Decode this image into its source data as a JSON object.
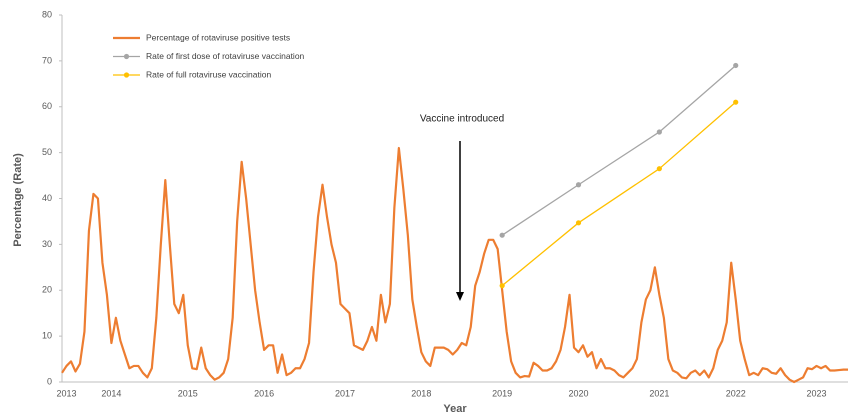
{
  "chart_data": {
    "type": "line",
    "x_label": "Year",
    "y_label": "Percentage (Rate)",
    "annotation": "Vaccine introduced",
    "categories": [
      null,
      "2013",
      null,
      null,
      null,
      null,
      null,
      null,
      null,
      null,
      null,
      "2014",
      null,
      null,
      null,
      null,
      null,
      null,
      null,
      null,
      null,
      null,
      null,
      null,
      null,
      null,
      null,
      null,
      "2015",
      null,
      null,
      null,
      null,
      null,
      null,
      null,
      null,
      null,
      null,
      null,
      null,
      null,
      null,
      null,
      null,
      "2016",
      null,
      null,
      null,
      null,
      null,
      null,
      null,
      null,
      null,
      null,
      null,
      null,
      null,
      null,
      null,
      null,
      null,
      "2017",
      null,
      null,
      null,
      null,
      null,
      null,
      null,
      null,
      null,
      null,
      null,
      null,
      null,
      null,
      null,
      null,
      "2018",
      null,
      null,
      null,
      null,
      null,
      null,
      null,
      null,
      null,
      null,
      null,
      null,
      null,
      null,
      null,
      null,
      null,
      "2019",
      null,
      null,
      null,
      null,
      null,
      null,
      null,
      null,
      null,
      null,
      null,
      null,
      null,
      null,
      null,
      null,
      "2020",
      null,
      null,
      null,
      null,
      null,
      null,
      null,
      null,
      null,
      null,
      null,
      null,
      null,
      null,
      null,
      null,
      null,
      "2021",
      null,
      null,
      null,
      null,
      null,
      null,
      null,
      null,
      null,
      null,
      null,
      null,
      null,
      null,
      null,
      null,
      "2022",
      null,
      null,
      null,
      null,
      null,
      null,
      null,
      null,
      null,
      null,
      null,
      null,
      null,
      null,
      null,
      null,
      null,
      "2023",
      null,
      null,
      null,
      null,
      null,
      null,
      null
    ],
    "series": [
      {
        "name": "Percentage of rotaviruse positive tests",
        "color": "#ed7d31",
        "values": [
          2,
          3.5,
          4.5,
          2.3,
          4,
          11,
          33,
          41,
          40,
          26,
          19,
          8.5,
          14,
          9,
          6,
          3,
          3.5,
          3.5,
          2,
          1,
          3,
          14,
          30,
          44,
          30,
          17,
          15,
          19,
          8,
          3,
          2.8,
          7.5,
          3,
          1.5,
          0.5,
          1,
          2,
          5,
          14,
          35,
          48,
          40,
          30,
          20,
          13,
          7,
          8,
          8,
          2,
          6,
          1.5,
          2,
          3,
          3,
          5,
          8.5,
          24,
          36,
          43,
          36,
          30,
          26,
          17,
          16,
          15,
          8,
          7.5,
          7,
          9,
          12,
          9,
          19,
          13,
          17,
          38,
          51,
          42,
          32,
          18,
          12,
          6.5,
          4.5,
          3.5,
          7.5,
          7.5,
          7.5,
          7,
          6,
          7,
          8.5,
          8,
          12,
          21,
          24,
          28,
          31,
          31,
          29,
          20,
          11,
          4.5,
          2,
          1,
          1.3,
          1.2,
          4.2,
          3.5,
          2.5,
          2.5,
          3,
          4.5,
          7,
          12,
          19,
          7.5,
          6.5,
          8,
          5.5,
          6.5,
          3,
          5,
          3,
          3,
          2.5,
          1.5,
          1,
          2,
          3,
          5,
          13,
          18,
          20,
          25,
          19,
          14,
          5,
          2.5,
          2,
          1,
          0.8,
          2,
          2.5,
          1.5,
          2.5,
          1,
          3,
          7,
          9,
          13,
          26,
          18,
          9,
          5,
          1.5,
          2,
          1.5,
          3,
          2.8,
          2,
          1.8,
          3,
          1.5,
          0.5,
          0,
          0.5,
          1,
          3,
          2.8,
          3.5,
          3,
          3.5,
          2.5,
          2.5,
          2.6,
          2.7,
          2.7
        ]
      },
      {
        "name": "Rate of first dose of rotaviruse vaccination",
        "color": "#a5a5a5",
        "x": [
          "2019",
          "2020",
          "2021",
          "2022"
        ],
        "values": [
          32,
          43,
          54.5,
          69
        ]
      },
      {
        "name": "Rate of full rotaviruse vaccination",
        "color": "#ffc000",
        "x": [
          "2019",
          "2020",
          "2021",
          "2022"
        ],
        "values": [
          21,
          34.7,
          46.5,
          61
        ]
      }
    ],
    "ylim": [
      0,
      80
    ],
    "yticks": [
      0,
      10,
      20,
      30,
      40,
      50,
      60,
      70,
      80
    ]
  }
}
